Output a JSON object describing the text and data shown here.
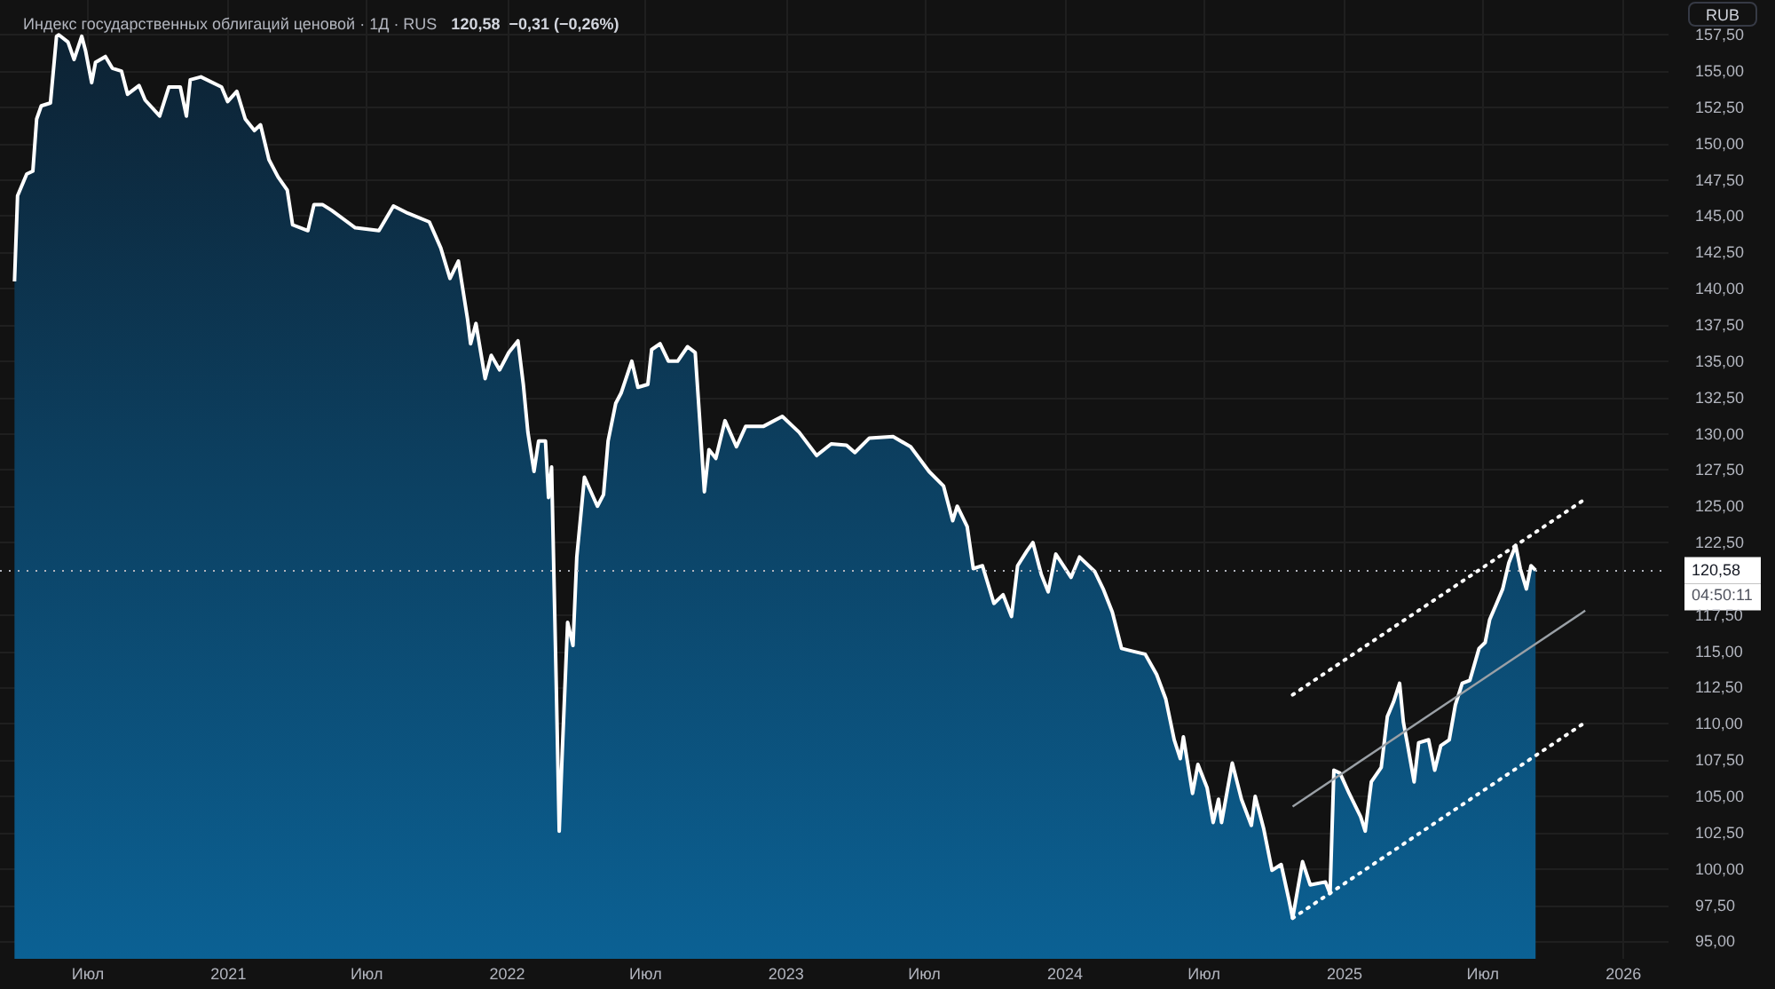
{
  "chart_data": {
    "type": "area",
    "title": "Индекс государственных облигаций ценовой · 1Д · RUS",
    "subtitle": "120,58  −0,31 (−0,26%)",
    "ylabel": "RUB",
    "annotations": [
      "04:50:11"
    ],
    "series": [
      {
        "color": "#ffffff",
        "x": [
          "2020-03-27",
          "2020-03-31",
          "2020-04-12",
          "2020-04-20",
          "2020-04-25",
          "2020-05-01",
          "2020-05-13",
          "2020-05-21",
          "2020-05-24",
          "2020-06-05",
          "2020-06-13",
          "2020-06-23",
          "2020-06-28",
          "2020-07-06",
          "2020-07-11",
          "2020-07-24",
          "2020-08-02",
          "2020-08-14",
          "2020-08-22",
          "2020-09-06",
          "2020-09-14",
          "2020-10-03",
          "2020-10-15",
          "2020-10-30",
          "2020-11-07",
          "2020-11-12",
          "2020-11-26",
          "2020-12-23",
          "2020-12-31",
          "2021-01-12",
          "2021-01-23",
          "2021-02-04",
          "2021-02-12",
          "2021-02-23",
          "2021-03-07",
          "2021-03-19",
          "2021-03-26",
          "2021-04-15",
          "2021-04-23",
          "2021-05-04",
          "2021-05-16",
          "2021-06-16",
          "2021-07-17",
          "2021-08-05",
          "2021-08-24",
          "2021-09-21",
          "2021-10-06",
          "2021-10-18",
          "2021-10-29",
          "2021-11-10",
          "2021-11-14",
          "2021-11-21",
          "2021-12-03",
          "2021-12-11",
          "2021-12-22",
          "2022-01-03",
          "2022-01-15",
          "2022-01-22",
          "2022-01-28",
          "2022-02-05",
          "2022-02-11",
          "2022-02-20",
          "2022-02-24",
          "2022-02-28",
          "2022-03-06",
          "2022-03-10",
          "2022-03-14",
          "2022-03-21",
          "2022-03-28",
          "2022-04-02",
          "2022-04-12",
          "2022-04-29",
          "2022-05-07",
          "2022-05-13",
          "2022-05-23",
          "2022-05-30",
          "2022-06-13",
          "2022-06-21",
          "2022-07-04",
          "2022-07-09",
          "2022-07-20",
          "2022-07-31",
          "2022-08-12",
          "2022-08-25",
          "2022-09-04",
          "2022-09-10",
          "2022-09-16",
          "2022-09-22",
          "2022-10-01",
          "2022-10-13",
          "2022-10-28",
          "2022-11-09",
          "2022-12-02",
          "2022-12-27",
          "2023-01-18",
          "2023-02-10",
          "2023-03-01",
          "2023-03-21",
          "2023-04-01",
          "2023-04-20",
          "2023-05-21",
          "2023-06-13",
          "2023-07-07",
          "2023-07-26",
          "2023-08-07",
          "2023-08-13",
          "2023-08-26",
          "2023-09-03",
          "2023-09-15",
          "2023-09-30",
          "2023-10-12",
          "2023-10-23",
          "2023-10-31",
          "2023-11-12",
          "2023-11-20",
          "2023-12-01",
          "2023-12-10",
          "2023-12-20",
          "2024-01-09",
          "2024-01-20",
          "2024-02-09",
          "2024-02-20",
          "2024-03-03",
          "2024-03-15",
          "2024-03-30",
          "2024-04-15",
          "2024-04-30",
          "2024-05-12",
          "2024-05-23",
          "2024-05-31",
          "2024-06-04",
          "2024-06-16",
          "2024-06-23",
          "2024-07-05",
          "2024-07-13",
          "2024-07-20",
          "2024-07-24",
          "2024-08-07",
          "2024-08-19",
          "2024-09-01",
          "2024-09-06",
          "2024-09-17",
          "2024-09-28",
          "2024-10-10",
          "2024-10-20",
          "2024-10-25",
          "2024-11-07",
          "2024-11-17",
          "2024-12-07",
          "2024-12-13",
          "2024-12-18",
          "2024-12-26",
          "2025-01-07",
          "2025-01-22",
          "2025-01-28",
          "2025-02-05",
          "2025-02-18",
          "2025-02-26",
          "2025-03-06",
          "2025-03-14",
          "2025-03-19",
          "2025-03-24",
          "2025-04-02",
          "2025-04-08",
          "2025-04-21",
          "2025-04-29",
          "2025-05-07",
          "2025-05-18",
          "2025-05-26",
          "2025-06-04",
          "2025-06-14",
          "2025-06-26",
          "2025-07-04",
          "2025-07-10",
          "2025-07-19",
          "2025-07-27",
          "2025-08-04",
          "2025-08-13",
          "2025-08-19",
          "2025-08-27",
          "2025-09-02",
          "2025-09-08"
        ],
        "values": [
          140.5,
          146.4,
          147.9,
          148.1,
          151.7,
          152.6,
          152.8,
          157.4,
          157.5,
          157.0,
          155.8,
          157.4,
          156.4,
          154.2,
          155.6,
          156.0,
          155.2,
          155.0,
          153.4,
          154.0,
          153.0,
          151.9,
          153.9,
          153.9,
          151.9,
          154.4,
          154.6,
          153.9,
          152.9,
          153.6,
          151.7,
          150.9,
          151.3,
          148.9,
          147.7,
          146.8,
          144.4,
          144.0,
          145.8,
          145.8,
          145.4,
          144.2,
          144.0,
          145.7,
          145.2,
          144.6,
          142.8,
          140.7,
          141.9,
          137.9,
          136.2,
          137.6,
          133.8,
          135.4,
          134.4,
          135.6,
          136.4,
          133.4,
          130.1,
          127.4,
          129.5,
          129.5,
          125.6,
          127.7,
          113.0,
          102.6,
          108.1,
          117.0,
          115.4,
          121.5,
          127.0,
          125.0,
          125.8,
          129.5,
          132.1,
          132.8,
          135.0,
          133.2,
          133.4,
          135.8,
          136.2,
          135.0,
          135.0,
          136.0,
          135.6,
          130.9,
          126.0,
          128.9,
          128.3,
          130.9,
          129.1,
          130.5,
          130.5,
          131.2,
          130.1,
          128.5,
          129.3,
          129.2,
          128.7,
          129.7,
          129.8,
          129.1,
          127.4,
          126.4,
          124.0,
          125.0,
          123.6,
          120.7,
          120.9,
          118.3,
          118.9,
          117.4,
          120.9,
          121.9,
          122.5,
          120.3,
          119.1,
          121.7,
          120.1,
          121.5,
          120.5,
          119.3,
          117.7,
          115.2,
          115.0,
          114.8,
          113.4,
          111.7,
          108.9,
          107.6,
          109.1,
          105.2,
          107.2,
          105.6,
          103.2,
          104.8,
          103.2,
          107.3,
          104.8,
          103.0,
          105.0,
          102.8,
          99.9,
          100.3,
          97.9,
          96.6,
          100.5,
          98.9,
          99.1,
          98.3,
          106.8,
          106.6,
          105.2,
          103.6,
          102.6,
          106.0,
          107.0,
          110.5,
          111.5,
          112.8,
          110.1,
          108.7,
          106.0,
          108.7,
          108.9,
          106.8,
          108.5,
          108.9,
          111.3,
          112.8,
          113.0,
          115.2,
          115.6,
          117.2,
          118.3,
          119.3,
          121.1,
          122.3,
          120.7,
          119.3,
          120.9,
          120.58
        ]
      },
      {
        "type": "line",
        "color": "#ffffff",
        "line_style": "dotted",
        "x": [
          "2024-10-25",
          "2025-11-12"
        ],
        "values": [
          112.0,
          125.5
        ]
      },
      {
        "type": "line",
        "color": "#9aa0a6",
        "line_style": "solid",
        "x": [
          "2024-10-25",
          "2025-11-12"
        ],
        "values": [
          104.3,
          117.8
        ]
      },
      {
        "type": "line",
        "color": "#ffffff",
        "line_style": "dotted",
        "x": [
          "2024-10-25",
          "2025-11-12"
        ],
        "values": [
          96.6,
          110.1
        ]
      }
    ],
    "xlim": [
      "2020-03-08",
      "2026-03-01"
    ],
    "xticks": [
      {
        "value": "2020-07-01",
        "label": "Июл"
      },
      {
        "value": "2021-01-01",
        "label": "2021"
      },
      {
        "value": "2021-07-01",
        "label": "Июл"
      },
      {
        "value": "2022-01-01",
        "label": "2022"
      },
      {
        "value": "2022-07-01",
        "label": "Июл"
      },
      {
        "value": "2023-01-01",
        "label": "2023"
      },
      {
        "value": "2023-07-01",
        "label": "Июл"
      },
      {
        "value": "2024-01-01",
        "label": "2024"
      },
      {
        "value": "2024-07-01",
        "label": "Июл"
      },
      {
        "value": "2025-01-01",
        "label": "2025"
      },
      {
        "value": "2025-07-01",
        "label": "Июл"
      },
      {
        "value": "2026-01-01",
        "label": "2026"
      }
    ],
    "ylim": [
      93.8,
      159.9
    ],
    "yticks": [
      {
        "value": 95,
        "label": "95,00"
      },
      {
        "value": 97.5,
        "label": "97,50"
      },
      {
        "value": 100,
        "label": "100,00"
      },
      {
        "value": 102.5,
        "label": "102,50"
      },
      {
        "value": 105,
        "label": "105,00"
      },
      {
        "value": 107.5,
        "label": "107,50"
      },
      {
        "value": 110,
        "label": "110,00"
      },
      {
        "value": 112.5,
        "label": "112,50"
      },
      {
        "value": 115,
        "label": "115,00"
      },
      {
        "value": 117.5,
        "label": "117,50"
      },
      {
        "value": 122.5,
        "label": "122,50"
      },
      {
        "value": 125,
        "label": "125,00"
      },
      {
        "value": 127.5,
        "label": "127,50"
      },
      {
        "value": 130,
        "label": "130,00"
      },
      {
        "value": 132.5,
        "label": "132,50"
      },
      {
        "value": 135,
        "label": "135,00"
      },
      {
        "value": 137.5,
        "label": "137,50"
      },
      {
        "value": 140,
        "label": "140,00"
      },
      {
        "value": 142.5,
        "label": "142,50"
      },
      {
        "value": 145,
        "label": "145,00"
      },
      {
        "value": 147.5,
        "label": "147,50"
      },
      {
        "value": 150,
        "label": "150,00"
      },
      {
        "value": 152.5,
        "label": "152,50"
      },
      {
        "value": 155,
        "label": "155,00"
      },
      {
        "value": 157.5,
        "label": "157,50"
      }
    ],
    "ref_lines": [
      {
        "axis": "y",
        "value": 120.58,
        "label": "120,58",
        "color": "#b2b5be",
        "line_style": "dotted"
      }
    ],
    "grid": true
  }
}
